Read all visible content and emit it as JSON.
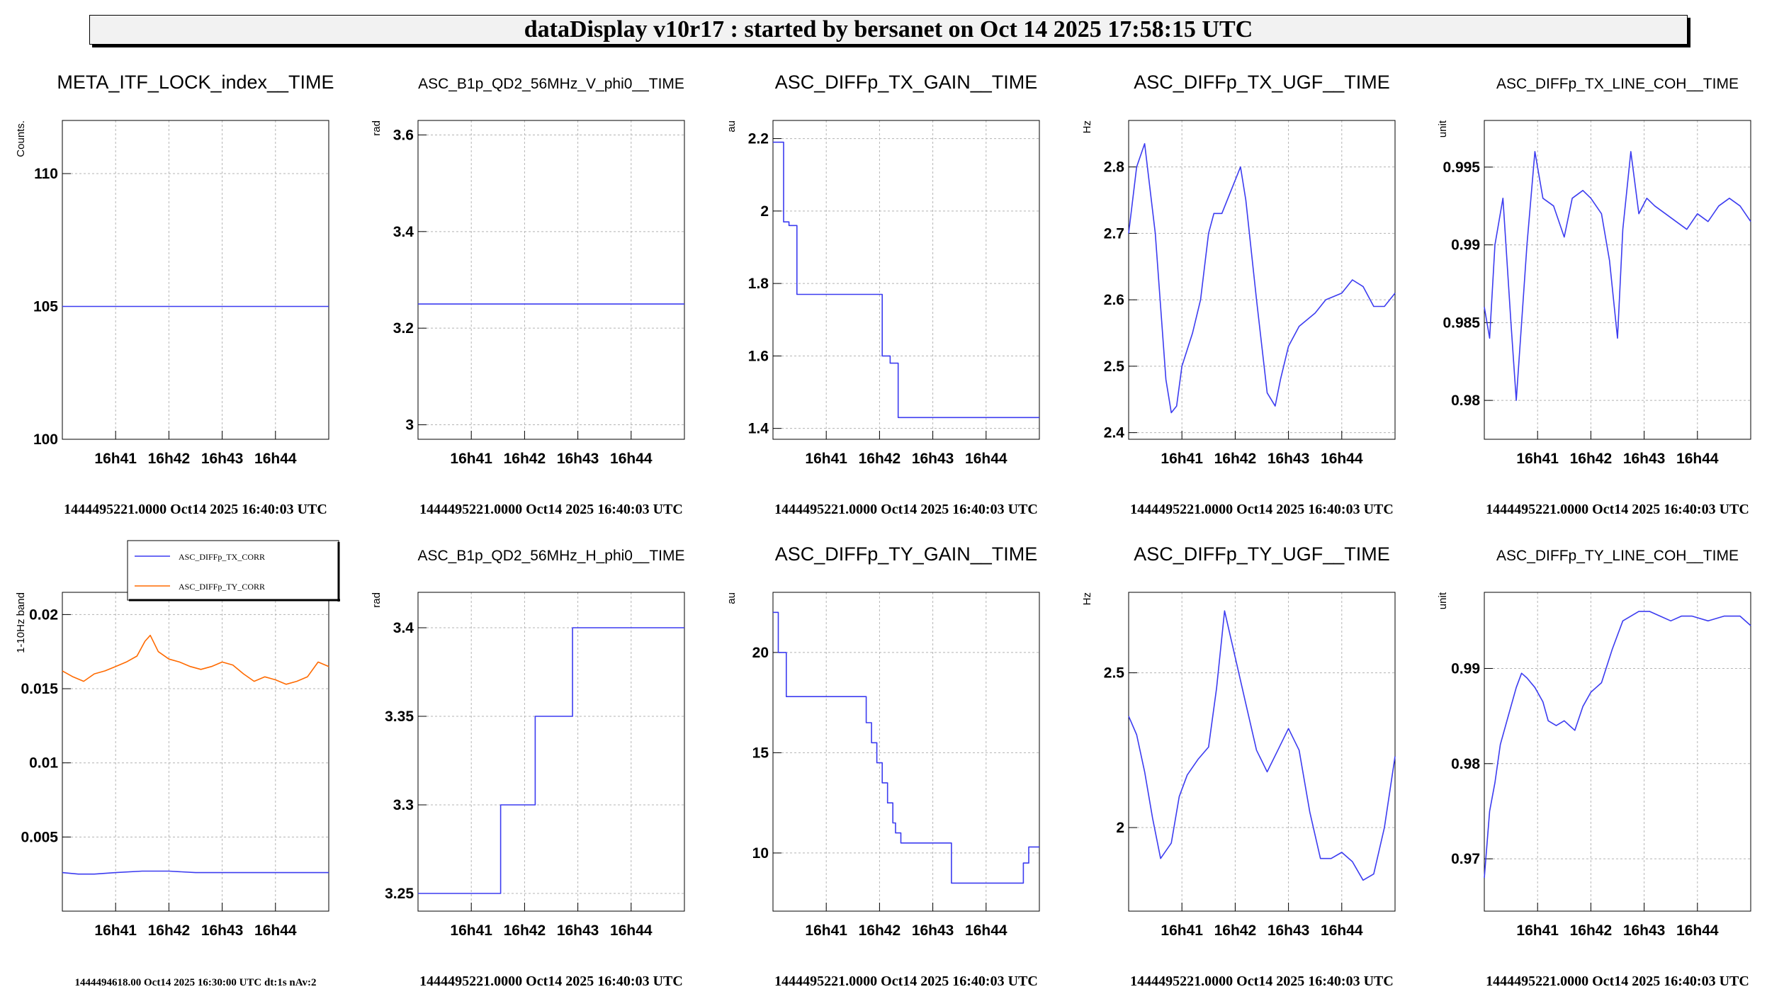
{
  "app_title": "dataDisplay v10r17 : started by bersanet on Oct 14 2025 17:58:15 UTC",
  "colors": {
    "series_blue": "#3c3cf0",
    "series_orange": "#ff6a00",
    "grid": "#b4b4b4",
    "banner_bg": "#f2f2f2"
  },
  "x_ticks": [
    "16h41",
    "16h42",
    "16h43",
    "16h44"
  ],
  "chart_data": [
    {
      "type": "line",
      "title": "META_ITF_LOCK_index__TIME",
      "ylabel": "Counts.",
      "footer": "1444495221.0000 Oct14 2025 16:40:03 UTC",
      "xlim": [
        0,
        5
      ],
      "ylim": [
        100,
        112
      ],
      "yticks": [
        100,
        105,
        110
      ],
      "ytick_labels": [
        "100",
        "105",
        "110"
      ],
      "series": [
        {
          "color": "#3c3cf0",
          "x": [
            0,
            5
          ],
          "y": [
            105,
            105
          ],
          "step": false
        }
      ]
    },
    {
      "type": "line",
      "title": "ASC_B1p_QD2_56MHz_V_phi0__TIME",
      "ylabel": "rad",
      "footer": "1444495221.0000 Oct14 2025 16:40:03 UTC",
      "xlim": [
        0,
        5
      ],
      "ylim": [
        2.97,
        3.63
      ],
      "yticks": [
        3,
        3.2,
        3.4,
        3.6
      ],
      "ytick_labels": [
        "3",
        "3.2",
        "3.4",
        "3.6"
      ],
      "series": [
        {
          "color": "#3c3cf0",
          "x": [
            0,
            5
          ],
          "y": [
            3.25,
            3.25
          ],
          "step": false
        }
      ]
    },
    {
      "type": "line",
      "title": "ASC_DIFFp_TX_GAIN__TIME",
      "ylabel": "au",
      "footer": "1444495221.0000 Oct14 2025 16:40:03 UTC",
      "xlim": [
        0,
        5
      ],
      "ylim": [
        1.37,
        2.25
      ],
      "yticks": [
        1.4,
        1.6,
        1.8,
        2,
        2.2
      ],
      "ytick_labels": [
        "1.4",
        "1.6",
        "1.8",
        "2",
        "2.2"
      ],
      "series": [
        {
          "color": "#3c3cf0",
          "step": true,
          "x": [
            0,
            0.2,
            0.3,
            0.45,
            2.05,
            2.2,
            2.35,
            5
          ],
          "y": [
            2.19,
            1.97,
            1.96,
            1.77,
            1.6,
            1.58,
            1.43,
            1.43
          ]
        }
      ]
    },
    {
      "type": "line",
      "title": "ASC_DIFFp_TX_UGF__TIME",
      "ylabel": "Hz",
      "footer": "1444495221.0000 Oct14 2025 16:40:03 UTC",
      "xlim": [
        0,
        5
      ],
      "ylim": [
        2.39,
        2.87
      ],
      "yticks": [
        2.4,
        2.5,
        2.6,
        2.7,
        2.8
      ],
      "ytick_labels": [
        "2.4",
        "2.5",
        "2.6",
        "2.7",
        "2.8"
      ],
      "series": [
        {
          "color": "#3c3cf0",
          "step": false,
          "x": [
            0,
            0.15,
            0.3,
            0.5,
            0.7,
            0.8,
            0.9,
            1.0,
            1.2,
            1.35,
            1.5,
            1.6,
            1.75,
            1.9,
            2.1,
            2.2,
            2.4,
            2.6,
            2.75,
            2.85,
            3.0,
            3.2,
            3.5,
            3.7,
            4.0,
            4.2,
            4.4,
            4.6,
            4.8,
            5.0
          ],
          "y": [
            2.7,
            2.8,
            2.835,
            2.7,
            2.48,
            2.43,
            2.44,
            2.5,
            2.55,
            2.6,
            2.7,
            2.73,
            2.73,
            2.76,
            2.8,
            2.75,
            2.6,
            2.46,
            2.44,
            2.48,
            2.53,
            2.56,
            2.58,
            2.6,
            2.61,
            2.63,
            2.62,
            2.59,
            2.59,
            2.61
          ]
        }
      ]
    },
    {
      "type": "line",
      "title": "ASC_DIFFp_TX_LINE_COH__TIME",
      "ylabel": "unit",
      "footer": "1444495221.0000 Oct14 2025 16:40:03 UTC",
      "xlim": [
        0,
        5
      ],
      "ylim": [
        0.9775,
        0.998
      ],
      "yticks": [
        0.98,
        0.985,
        0.99,
        0.995
      ],
      "ytick_labels": [
        "0.98",
        "0.985",
        "0.99",
        "0.995"
      ],
      "series": [
        {
          "color": "#3c3cf0",
          "step": false,
          "x": [
            0,
            0.1,
            0.2,
            0.35,
            0.5,
            0.6,
            0.8,
            0.95,
            1.1,
            1.3,
            1.5,
            1.65,
            1.85,
            2.0,
            2.2,
            2.35,
            2.5,
            2.6,
            2.75,
            2.9,
            3.05,
            3.2,
            3.4,
            3.6,
            3.8,
            4.0,
            4.2,
            4.4,
            4.6,
            4.8,
            5.0
          ],
          "y": [
            0.986,
            0.984,
            0.99,
            0.993,
            0.985,
            0.98,
            0.99,
            0.996,
            0.993,
            0.9925,
            0.9905,
            0.993,
            0.9935,
            0.993,
            0.992,
            0.989,
            0.984,
            0.991,
            0.996,
            0.992,
            0.993,
            0.9925,
            0.992,
            0.9915,
            0.991,
            0.992,
            0.9915,
            0.9925,
            0.993,
            0.9925,
            0.9915
          ]
        }
      ]
    },
    {
      "type": "line",
      "title": "",
      "ylabel": "1-10Hz band",
      "footer": "1444494618.00 Oct14 2025 16:30:00 UTC dt:1s nAv:2",
      "xlim": [
        0,
        5
      ],
      "ylim": [
        0,
        0.0215
      ],
      "yticks": [
        0.005,
        0.01,
        0.015,
        0.02
      ],
      "ytick_labels": [
        "0.005",
        "0.01",
        "0.015",
        "0.02"
      ],
      "legend": {
        "placement": "top-right",
        "entries": [
          "ASC_DIFFp_TX_CORR",
          "ASC_DIFFp_TY_CORR"
        ]
      },
      "series": [
        {
          "name": "ASC_DIFFp_TX_CORR",
          "color": "#3c3cf0",
          "step": false,
          "x": [
            0,
            0.3,
            0.6,
            1.0,
            1.5,
            2.0,
            2.5,
            3.0,
            3.5,
            4.0,
            4.5,
            5.0
          ],
          "y": [
            0.0026,
            0.0025,
            0.0025,
            0.0026,
            0.0027,
            0.0027,
            0.0026,
            0.0026,
            0.0026,
            0.0026,
            0.0026,
            0.0026
          ]
        },
        {
          "name": "ASC_DIFFp_TY_CORR",
          "color": "#ff6a00",
          "step": false,
          "x": [
            0,
            0.2,
            0.4,
            0.6,
            0.8,
            1.0,
            1.2,
            1.4,
            1.55,
            1.65,
            1.8,
            2.0,
            2.2,
            2.4,
            2.6,
            2.8,
            3.0,
            3.2,
            3.4,
            3.6,
            3.8,
            4.0,
            4.2,
            4.4,
            4.6,
            4.8,
            5.0
          ],
          "y": [
            0.0162,
            0.0158,
            0.0155,
            0.016,
            0.0162,
            0.0165,
            0.0168,
            0.0172,
            0.0182,
            0.0186,
            0.0175,
            0.017,
            0.0168,
            0.0165,
            0.0163,
            0.0165,
            0.0168,
            0.0166,
            0.016,
            0.0155,
            0.0158,
            0.0156,
            0.0153,
            0.0155,
            0.0158,
            0.0168,
            0.0165
          ]
        }
      ]
    },
    {
      "type": "line",
      "title": "ASC_B1p_QD2_56MHz_H_phi0__TIME",
      "ylabel": "rad",
      "footer": "1444495221.0000 Oct14 2025 16:40:03 UTC",
      "xlim": [
        0,
        5
      ],
      "ylim": [
        3.24,
        3.42
      ],
      "yticks": [
        3.25,
        3.3,
        3.35,
        3.4
      ],
      "ytick_labels": [
        "3.25",
        "3.3",
        "3.35",
        "3.4"
      ],
      "series": [
        {
          "color": "#3c3cf0",
          "step": true,
          "x": [
            0,
            1.55,
            2.2,
            2.9,
            5
          ],
          "y": [
            3.25,
            3.3,
            3.35,
            3.4,
            3.4
          ]
        }
      ]
    },
    {
      "type": "line",
      "title": "ASC_DIFFp_TY_GAIN__TIME",
      "ylabel": "au",
      "footer": "1444495221.0000 Oct14 2025 16:40:03 UTC",
      "xlim": [
        0,
        5
      ],
      "ylim": [
        7.1,
        23.0
      ],
      "yticks": [
        10,
        15,
        20
      ],
      "ytick_labels": [
        "10",
        "15",
        "20"
      ],
      "series": [
        {
          "color": "#3c3cf0",
          "step": true,
          "x": [
            0,
            0.1,
            0.25,
            1.6,
            1.75,
            1.85,
            1.95,
            2.05,
            2.15,
            2.25,
            2.3,
            2.4,
            2.5,
            3.2,
            3.35,
            4.6,
            4.7,
            4.8,
            5.0
          ],
          "y": [
            22,
            20,
            17.8,
            17.8,
            16.5,
            15.5,
            14.5,
            13.5,
            12.5,
            11.5,
            11.0,
            10.5,
            10.5,
            10.5,
            8.5,
            8.5,
            9.5,
            10.3,
            10.3
          ]
        }
      ]
    },
    {
      "type": "line",
      "title": "ASC_DIFFp_TY_UGF__TIME",
      "ylabel": "Hz",
      "footer": "1444495221.0000 Oct14 2025 16:40:03 UTC",
      "xlim": [
        0,
        5
      ],
      "ylim": [
        1.73,
        2.76
      ],
      "yticks": [
        2,
        2.5
      ],
      "ytick_labels": [
        "2",
        "2.5"
      ],
      "series": [
        {
          "color": "#3c3cf0",
          "step": false,
          "x": [
            0,
            0.15,
            0.3,
            0.45,
            0.6,
            0.8,
            0.95,
            1.1,
            1.3,
            1.5,
            1.65,
            1.8,
            2.0,
            2.2,
            2.4,
            2.6,
            2.8,
            3.0,
            3.2,
            3.4,
            3.6,
            3.8,
            4.0,
            4.2,
            4.4,
            4.6,
            4.8,
            5.0
          ],
          "y": [
            2.36,
            2.3,
            2.18,
            2.03,
            1.9,
            1.95,
            2.1,
            2.17,
            2.22,
            2.26,
            2.45,
            2.7,
            2.55,
            2.4,
            2.25,
            2.18,
            2.25,
            2.32,
            2.25,
            2.05,
            1.9,
            1.9,
            1.92,
            1.89,
            1.83,
            1.85,
            2.0,
            2.23
          ]
        }
      ]
    },
    {
      "type": "line",
      "title": "ASC_DIFFp_TY_LINE_COH__TIME",
      "ylabel": "unit",
      "footer": "1444495221.0000 Oct14 2025 16:40:03 UTC",
      "xlim": [
        0,
        5
      ],
      "ylim": [
        0.9645,
        0.998
      ],
      "yticks": [
        0.97,
        0.98,
        0.99
      ],
      "ytick_labels": [
        "0.97",
        "0.98",
        "0.99"
      ],
      "series": [
        {
          "color": "#3c3cf0",
          "step": false,
          "x": [
            0,
            0.1,
            0.2,
            0.3,
            0.45,
            0.6,
            0.7,
            0.8,
            0.95,
            1.1,
            1.2,
            1.35,
            1.5,
            1.6,
            1.7,
            1.85,
            2.0,
            2.1,
            2.2,
            2.4,
            2.6,
            2.9,
            3.1,
            3.3,
            3.5,
            3.7,
            3.9,
            4.2,
            4.5,
            4.8,
            5.0
          ],
          "y": [
            0.968,
            0.975,
            0.978,
            0.982,
            0.985,
            0.988,
            0.9895,
            0.989,
            0.988,
            0.9865,
            0.9845,
            0.984,
            0.9845,
            0.984,
            0.9835,
            0.986,
            0.9875,
            0.988,
            0.9885,
            0.992,
            0.995,
            0.996,
            0.996,
            0.9955,
            0.995,
            0.9955,
            0.9955,
            0.995,
            0.9955,
            0.9955,
            0.9945
          ]
        }
      ]
    }
  ]
}
